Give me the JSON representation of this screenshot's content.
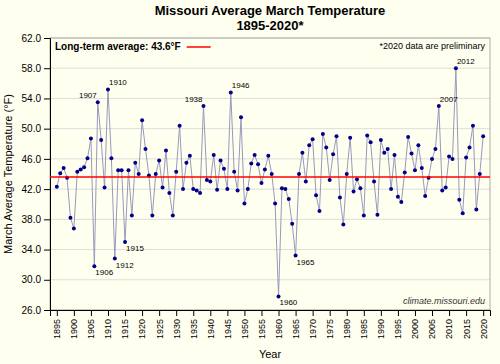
{
  "chart_data": {
    "type": "line",
    "title": "Missouri Average March Temperature",
    "subtitle": "1895-2020*",
    "xlabel": "Year",
    "ylabel": "March Average Temperature (°F)",
    "background_color": "#FFFFF0",
    "grid": "y",
    "xlim": [
      1893,
      2022
    ],
    "xticks": [
      1895,
      1900,
      1905,
      1910,
      1915,
      1920,
      1925,
      1930,
      1935,
      1940,
      1945,
      1950,
      1955,
      1960,
      1965,
      1970,
      1975,
      1980,
      1985,
      1990,
      1995,
      2000,
      2005,
      2010,
      2015,
      2020
    ],
    "ylim": [
      26.0,
      62.0
    ],
    "yticks": [
      {
        "value": 26.0,
        "label": "26.0"
      },
      {
        "value": 30.0,
        "label": "30.0"
      },
      {
        "value": 34.0,
        "label": "34.0"
      },
      {
        "value": 38.0,
        "label": "38.0"
      },
      {
        "value": 42.0,
        "label": "42.0"
      },
      {
        "value": 46.0,
        "label": "46.0"
      },
      {
        "value": 50.0,
        "label": "50.0"
      },
      {
        "value": 54.0,
        "label": "54.0"
      },
      {
        "value": 58.0,
        "label": "58.0"
      },
      {
        "value": 62.0,
        "label": "62.0"
      }
    ],
    "x": [
      1895,
      1896,
      1897,
      1898,
      1899,
      1900,
      1901,
      1902,
      1903,
      1904,
      1905,
      1906,
      1907,
      1908,
      1909,
      1910,
      1911,
      1912,
      1913,
      1914,
      1915,
      1916,
      1917,
      1918,
      1919,
      1920,
      1921,
      1922,
      1923,
      1924,
      1925,
      1926,
      1927,
      1928,
      1929,
      1930,
      1931,
      1932,
      1933,
      1934,
      1935,
      1936,
      1937,
      1938,
      1939,
      1940,
      1941,
      1942,
      1943,
      1944,
      1945,
      1946,
      1947,
      1948,
      1949,
      1950,
      1951,
      1952,
      1953,
      1954,
      1955,
      1956,
      1957,
      1958,
      1959,
      1960,
      1961,
      1962,
      1963,
      1964,
      1965,
      1966,
      1967,
      1968,
      1969,
      1970,
      1971,
      1972,
      1973,
      1974,
      1975,
      1976,
      1977,
      1978,
      1979,
      1980,
      1981,
      1982,
      1983,
      1984,
      1985,
      1986,
      1987,
      1988,
      1989,
      1990,
      1991,
      1992,
      1993,
      1994,
      1995,
      1996,
      1997,
      1998,
      1999,
      2000,
      2001,
      2002,
      2003,
      2004,
      2005,
      2006,
      2007,
      2008,
      2009,
      2010,
      2011,
      2012,
      2013,
      2014,
      2015,
      2016,
      2017,
      2018,
      2019,
      2020
    ],
    "series": [
      {
        "type": "line",
        "color": "#9999bb",
        "values": [
          42.3,
          44.1,
          44.8,
          43.5,
          38.2,
          36.8,
          44.3,
          44.6,
          44.9,
          46.1,
          48.7,
          31.8,
          53.5,
          48.5,
          42.2,
          55.2,
          46.1,
          32.8,
          44.5,
          44.5,
          35.0,
          44.5,
          38.5,
          45.5,
          44.0,
          51.1,
          47.3,
          43.8,
          38.5,
          44.0,
          45.8,
          42.2,
          47.1,
          41.5,
          38.5,
          44.3,
          50.4,
          42.0,
          45.5,
          46.4,
          42.0,
          41.8,
          41.5,
          53.0,
          43.2,
          43.0,
          46.5,
          41.9,
          45.8,
          44.7,
          42.0,
          54.8,
          44.3,
          41.8,
          51.5,
          40.1,
          42.0,
          45.4,
          46.5,
          45.3,
          42.8,
          44.6,
          46.4,
          44.0,
          40.1,
          27.8,
          42.1,
          42.0,
          40.7,
          37.4,
          33.2,
          44.0,
          46.8,
          43.0,
          47.8,
          48.6,
          41.2,
          39.1,
          49.3,
          47.5,
          43.2,
          46.6,
          49.0,
          40.9,
          37.3,
          44.0,
          48.8,
          41.7,
          43.3,
          42.1,
          38.5,
          49.1,
          48.2,
          43.0,
          38.6,
          48.5,
          46.8,
          47.3,
          42.0,
          46.5,
          41.0,
          40.3,
          44.2,
          48.9,
          46.7,
          44.5,
          47.8,
          44.8,
          41.1,
          43.5,
          46.0,
          47.3,
          53.0,
          41.8,
          42.2,
          46.3,
          46.0,
          58.0,
          40.6,
          38.8,
          46.2,
          47.5,
          50.4,
          39.3,
          44.0,
          49.0
        ]
      },
      {
        "type": "scatter",
        "color": "#00008B",
        "values": [
          42.3,
          44.1,
          44.8,
          43.5,
          38.2,
          36.8,
          44.3,
          44.6,
          44.9,
          46.1,
          48.7,
          31.8,
          53.5,
          48.5,
          42.2,
          55.2,
          46.1,
          32.8,
          44.5,
          44.5,
          35.0,
          44.5,
          38.5,
          45.5,
          44.0,
          51.1,
          47.3,
          43.8,
          38.5,
          44.0,
          45.8,
          42.2,
          47.1,
          41.5,
          38.5,
          44.3,
          50.4,
          42.0,
          45.5,
          46.4,
          42.0,
          41.8,
          41.5,
          53.0,
          43.2,
          43.0,
          46.5,
          41.9,
          45.8,
          44.7,
          42.0,
          54.8,
          44.3,
          41.8,
          51.5,
          40.1,
          42.0,
          45.4,
          46.5,
          45.3,
          42.8,
          44.6,
          46.4,
          44.0,
          40.1,
          27.8,
          42.1,
          42.0,
          40.7,
          37.4,
          33.2,
          44.0,
          46.8,
          43.0,
          47.8,
          48.6,
          41.2,
          39.1,
          49.3,
          47.5,
          43.2,
          46.6,
          49.0,
          40.9,
          37.3,
          44.0,
          48.8,
          41.7,
          43.3,
          42.1,
          38.5,
          49.1,
          48.2,
          43.0,
          38.6,
          48.5,
          46.8,
          47.3,
          42.0,
          46.5,
          41.0,
          40.3,
          44.2,
          48.9,
          46.7,
          44.5,
          47.8,
          44.8,
          41.1,
          43.5,
          46.0,
          47.3,
          53.0,
          41.8,
          42.2,
          46.3,
          46.0,
          58.0,
          40.6,
          38.8,
          46.2,
          47.5,
          50.4,
          39.3,
          44.0,
          49.0
        ]
      }
    ],
    "average": {
      "value": 43.6,
      "label": "Long-term average: 43.6°F",
      "color": "#FF0000"
    },
    "note": "*2020 data are preliminary",
    "credit": "climate.missouri.edu",
    "annotations": [
      {
        "text": "1906",
        "x": 1906,
        "y": 31.8,
        "position": "below"
      },
      {
        "text": "1907",
        "x": 1907,
        "y": 53.5,
        "position": "above-left"
      },
      {
        "text": "1910",
        "x": 1910,
        "y": 55.2,
        "position": "above"
      },
      {
        "text": "1912",
        "x": 1912,
        "y": 32.8,
        "position": "below"
      },
      {
        "text": "1915",
        "x": 1915,
        "y": 35.0,
        "position": "below"
      },
      {
        "text": "1938",
        "x": 1938,
        "y": 53.0,
        "position": "above-left"
      },
      {
        "text": "1946",
        "x": 1946,
        "y": 54.8,
        "position": "above"
      },
      {
        "text": "1960",
        "x": 1960,
        "y": 27.8,
        "position": "below"
      },
      {
        "text": "1965",
        "x": 1965,
        "y": 33.2,
        "position": "below"
      },
      {
        "text": "2007",
        "x": 2007,
        "y": 53.0,
        "position": "above"
      },
      {
        "text": "2012",
        "x": 2012,
        "y": 58.0,
        "position": "above"
      }
    ]
  }
}
